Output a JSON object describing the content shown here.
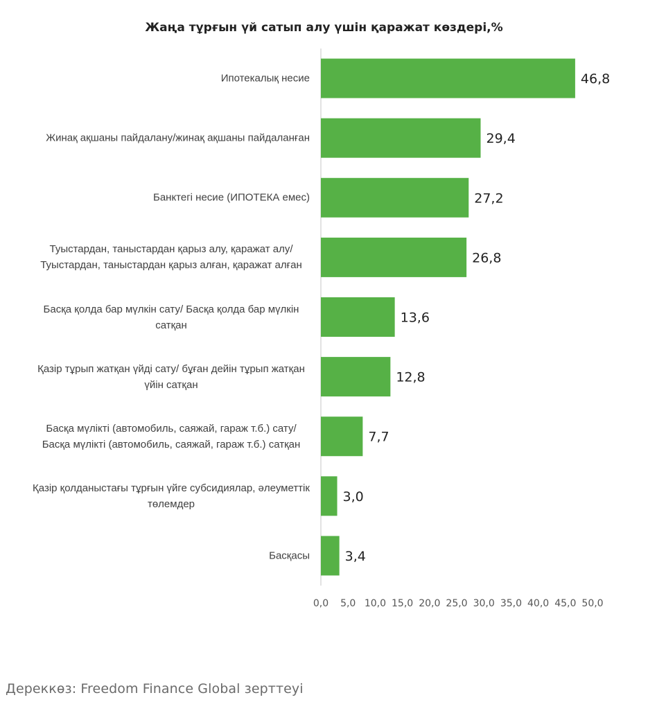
{
  "chart_data": {
    "type": "bar",
    "orientation": "horizontal",
    "title": "Жаңа тұрғын үй сатып алу үшін қаражат көздері,%",
    "categories": [
      "Ипотекалық несие",
      "Жинақ ақшаны пайдалану/жинақ ақшаны пайдаланған",
      "Банктегі несие (ИПОТЕКА емес)",
      "Туыстардан, таныстардан қарыз алу, қаражат алу/ Туыстардан, таныстардан қарыз алған, қаражат алған",
      "Басқа қолда бар мүлкін сату/ Басқа қолда бар мүлкін сатқан",
      "Қазір тұрып жатқан үйді сату/ бұған дейін тұрып жатқан үйін сатқан",
      "Басқа мүлікті (автомобиль, саяжай, гараж т.б.) сату/Басқа мүлікті (автомобиль, саяжай, гараж т.б.) сатқан",
      "Қазір қолданыстағы тұрғын үйге субсидиялар, әлеуметтік төлемдер",
      "Басқасы"
    ],
    "values": [
      46.8,
      29.4,
      27.2,
      26.8,
      13.6,
      12.8,
      7.7,
      3.0,
      3.4
    ],
    "value_labels": [
      "46,8",
      "29,4",
      "27,2",
      "26,8",
      "13,6",
      "12,8",
      "7,7",
      "3,0",
      "3,4"
    ],
    "xlim": [
      0,
      50
    ],
    "x_ticks": [
      "0,0",
      "5,0",
      "10,0",
      "15,0",
      "20,0",
      "25,0",
      "30,0",
      "35,0",
      "40,0",
      "45,0",
      "50,0"
    ],
    "grid": false,
    "bar_color": "#56b146",
    "axis_color": "#d9d9d9"
  },
  "source": "Дереккөз: Freedom Finance Global зерттеуі"
}
